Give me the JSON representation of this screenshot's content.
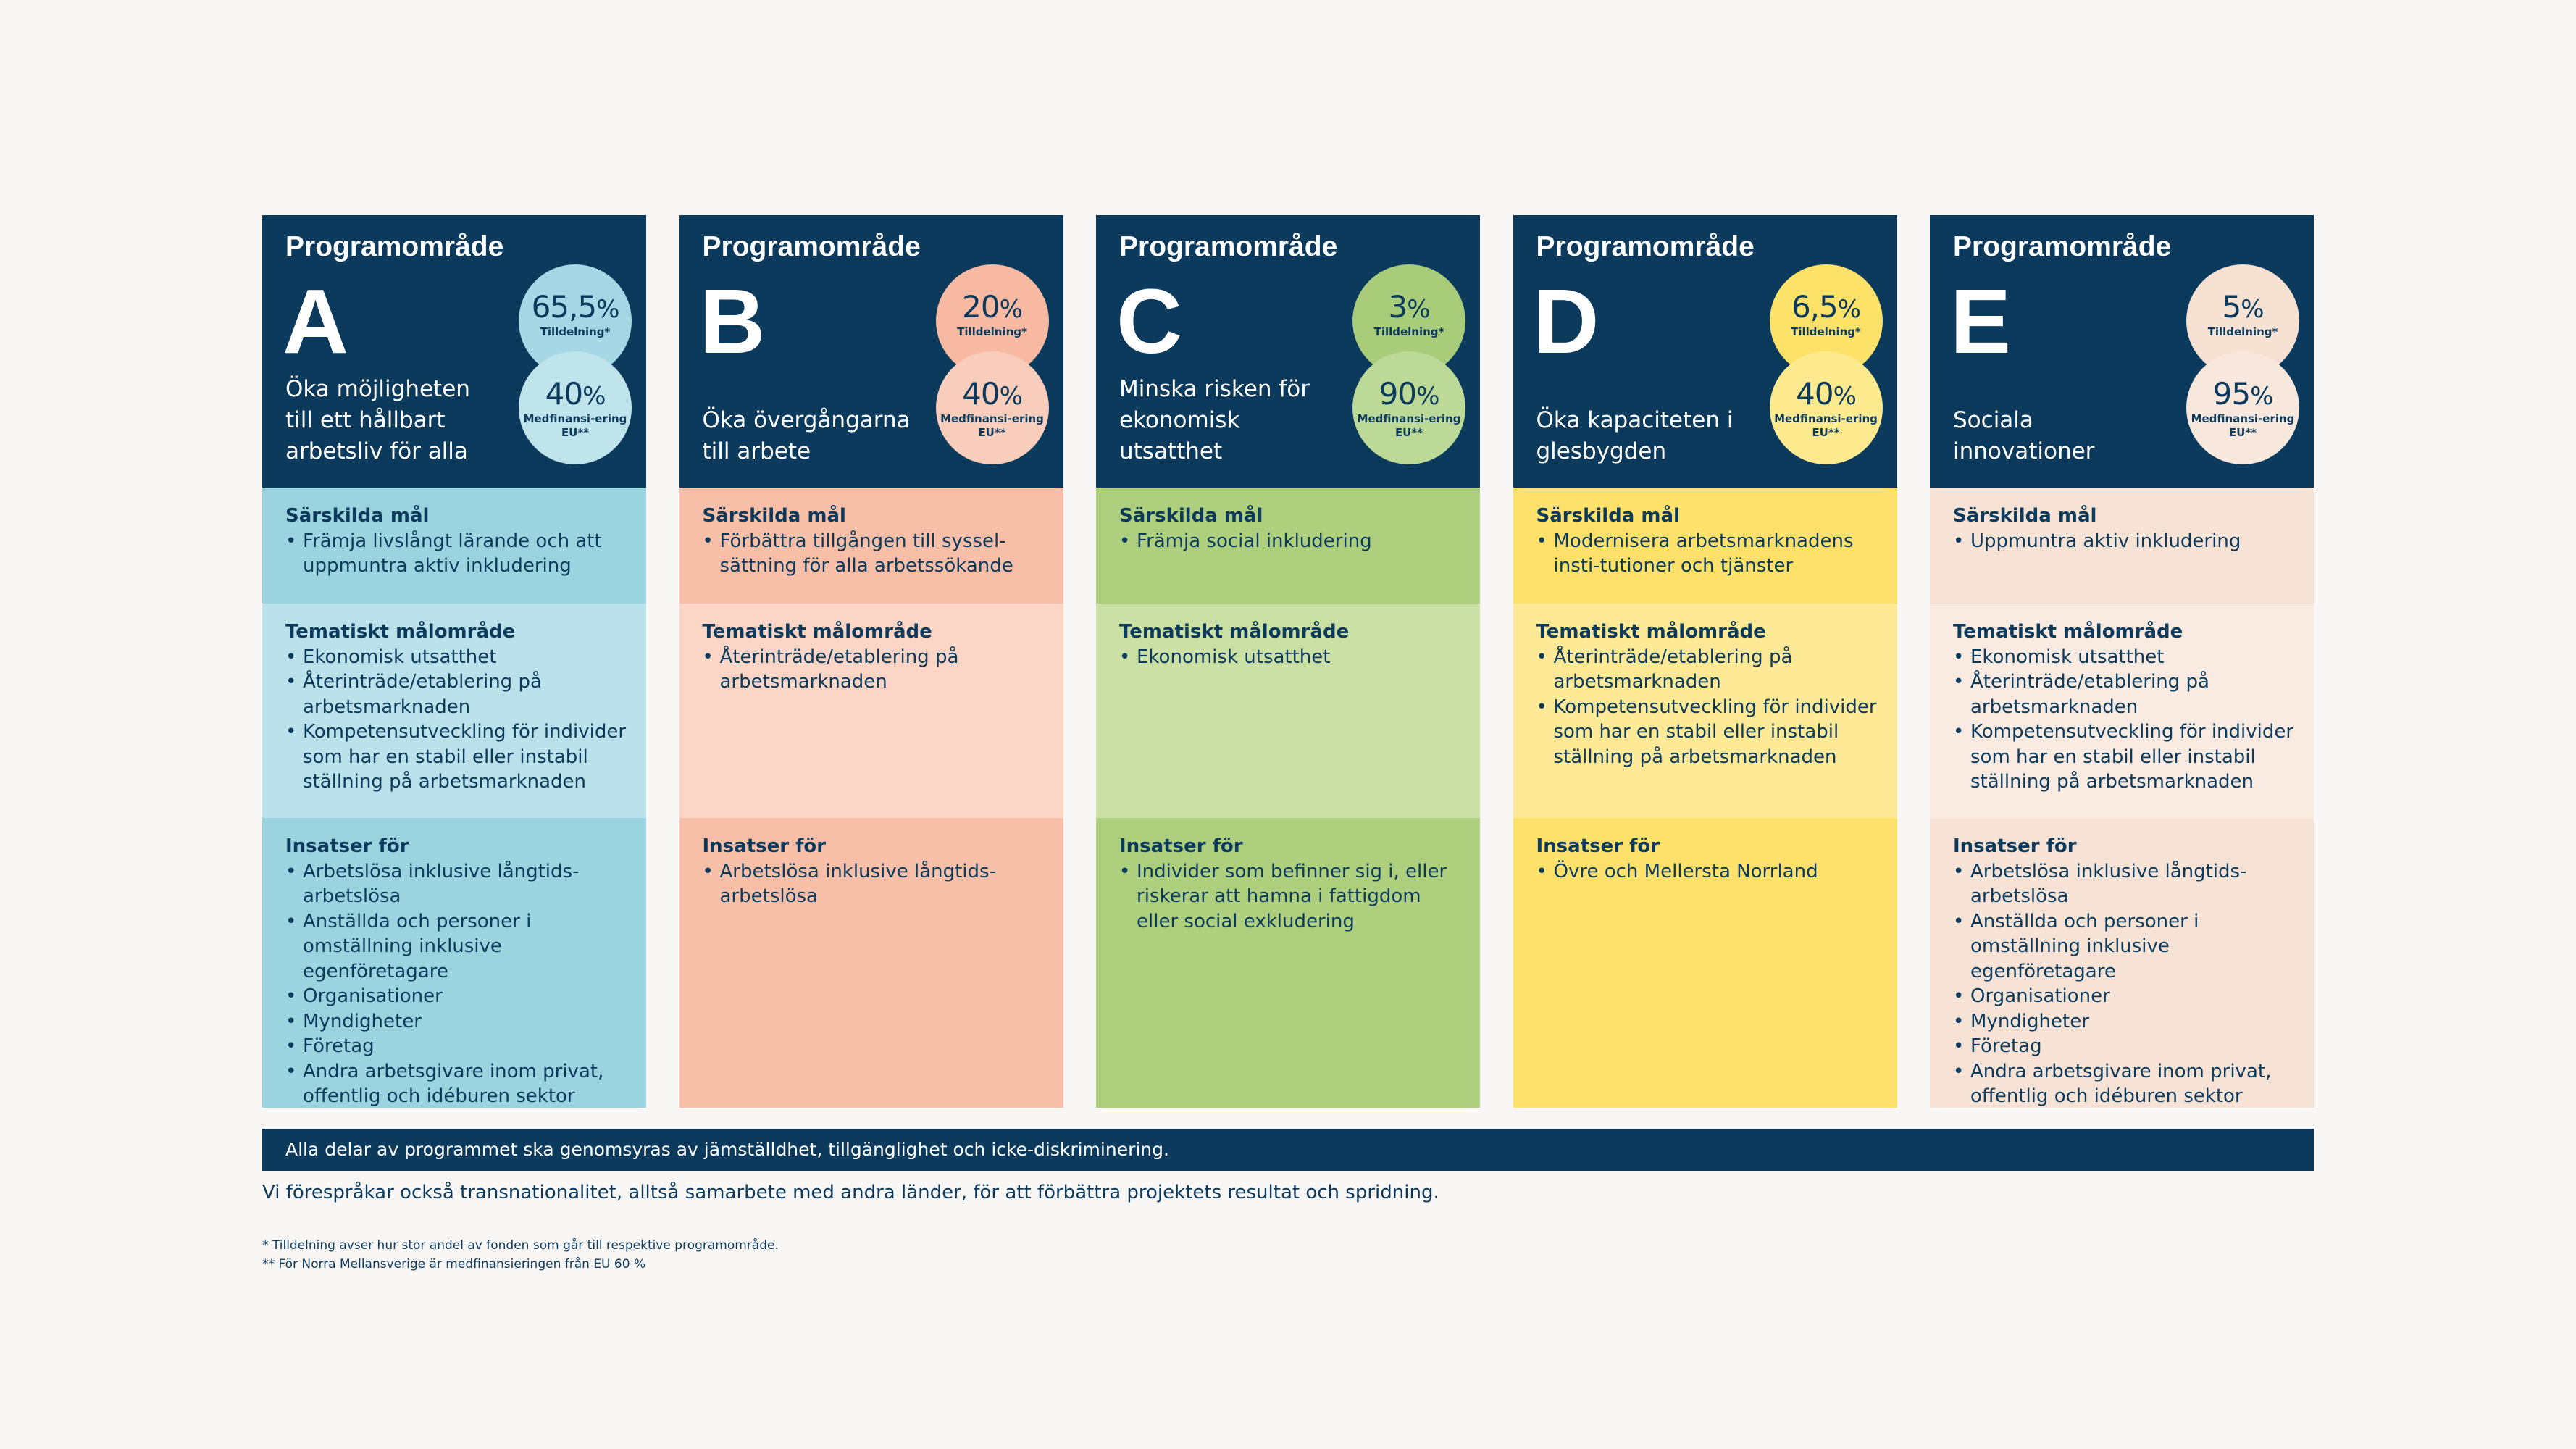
{
  "areas": [
    {
      "heading": "Programområde",
      "letter": "A",
      "goal": "Öka möjligheten till ett hållbart arbetsliv för alla",
      "allocation_value": "65,5",
      "allocation_label": "Tilldelning*",
      "cofinancing_value": "40",
      "cofinancing_label": "Medfinansi-ering EU**",
      "colors": {
        "circle_top": "#a5d8e4",
        "circle_bottom": "#c0e4ec",
        "sec1": "#9bd3df",
        "sec2": "#bbe2ea",
        "sec3": "#9bd3df"
      },
      "specific_title": "Särskilda mål",
      "specific": [
        "Främja livslångt lärande och att uppmuntra aktiv inkludering"
      ],
      "thematic_title": "Tematiskt målområde",
      "thematic": [
        "Ekonomisk utsatthet",
        "Återinträde/etablering på arbetsmarknaden",
        "Kompetensutveckling för individer som har en stabil eller instabil ställning på arbetsmarknaden"
      ],
      "target_title": "Insatser för",
      "target": [
        "Arbetslösa inklusive långtids-arbetslösa",
        "Anställda och personer i omställning inklusive egenföretagare",
        "Organisationer",
        "Myndigheter",
        "Företag",
        "Andra arbetsgivare inom privat, offentlig och idéburen sektor"
      ]
    },
    {
      "heading": "Programområde",
      "letter": "B",
      "goal": "Öka övergångarna till arbete",
      "allocation_value": "20",
      "allocation_label": "Tilldelning*",
      "cofinancing_value": "40",
      "cofinancing_label": "Medfinansi-ering EU**",
      "colors": {
        "circle_top": "#f7b9a2",
        "circle_bottom": "#f9cdbb",
        "sec1": "#f8bfa8",
        "sec2": "#fbd6c6",
        "sec3": "#f8bfa8"
      },
      "specific_title": "Särskilda mål",
      "specific": [
        "Förbättra tillgången till syssel-sättning för alla arbetssökande"
      ],
      "thematic_title": "Tematiskt målområde",
      "thematic": [
        "Återinträde/etablering på arbetsmarknaden"
      ],
      "target_title": "Insatser för",
      "target": [
        "Arbetslösa inklusive långtids-arbetslösa"
      ]
    },
    {
      "heading": "Programområde",
      "letter": "C",
      "goal": "Minska risken för ekonomisk utsatthet",
      "allocation_value": "3",
      "allocation_label": "Tilldelning*",
      "cofinancing_value": "90",
      "cofinancing_label": "Medfinansi-ering EU**",
      "colors": {
        "circle_top": "#a8cc7a",
        "circle_bottom": "#bcd997",
        "sec1": "#aecf7e",
        "sec2": "#cbe0a4",
        "sec3": "#aecf7e"
      },
      "specific_title": "Särskilda mål",
      "specific": [
        "Främja social inkludering"
      ],
      "thematic_title": "Tematiskt målområde",
      "thematic": [
        "Ekonomisk utsatthet"
      ],
      "target_title": "Insatser för",
      "target": [
        "Individer som befinner sig i, eller riskerar att hamna i fattigdom eller social exkludering"
      ]
    },
    {
      "heading": "Programområde",
      "letter": "D",
      "goal": "Öka kapaciteten i glesbygden",
      "allocation_value": "6,5",
      "allocation_label": "Tilldelning*",
      "cofinancing_value": "40",
      "cofinancing_label": "Medfinansi-ering EU**",
      "colors": {
        "circle_top": "#fde26a",
        "circle_bottom": "#feea8e",
        "sec1": "#fde16a",
        "sec2": "#feea96",
        "sec3": "#fde16a"
      },
      "specific_title": "Särskilda mål",
      "specific": [
        "Modernisera arbetsmarknadens insti-tutioner och tjänster"
      ],
      "thematic_title": "Tematiskt målområde",
      "thematic": [
        "Återinträde/etablering på arbetsmarknaden",
        "Kompetensutveckling för individer som har en stabil eller instabil ställning på arbetsmarknaden"
      ],
      "target_title": "Insatser för",
      "target": [
        "Övre och Mellersta Norrland"
      ]
    },
    {
      "heading": "Programområde",
      "letter": "E",
      "goal": "Sociala innovationer",
      "allocation_value": "5",
      "allocation_label": "Tilldelning*",
      "cofinancing_value": "95",
      "cofinancing_label": "Medfinansi-ering EU**",
      "colors": {
        "circle_top": "#f6e1d3",
        "circle_bottom": "#f8e7dc",
        "sec1": "#f6e3d6",
        "sec2": "#f9ebe1",
        "sec3": "#f6e3d6"
      },
      "specific_title": "Särskilda mål",
      "specific": [
        "Uppmuntra aktiv inkludering"
      ],
      "thematic_title": "Tematiskt målområde",
      "thematic": [
        "Ekonomisk utsatthet",
        "Återinträde/etablering på arbetsmarknaden",
        "Kompetensutveckling för individer som har en stabil eller instabil ställning på arbetsmarknaden"
      ],
      "target_title": "Insatser för",
      "target": [
        "Arbetslösa inklusive långtids-arbetslösa",
        "Anställda och personer i omställning inklusive egenföretagare",
        "Organisationer",
        "Myndigheter",
        "Företag",
        "Andra arbetsgivare inom privat, offentlig och idéburen sektor"
      ]
    }
  ],
  "percent_sign": "%",
  "banner": "Alla delar av programmet ska genomsyras av jämställdhet, tillgänglighet och icke-diskriminering.",
  "note": "Vi förespråkar också transnationalitet, alltså samarbete med andra länder, för att förbättra projektets resultat och spridning.",
  "footnotes": [
    "* Tilldelning avser hur stor andel av fonden som går till respektive programområde.",
    "** För Norra Mellansverige är medfinansieringen från EU 60 %"
  ],
  "palette": {
    "navy": "#0c3a5c",
    "background": "#f9f6f6"
  }
}
